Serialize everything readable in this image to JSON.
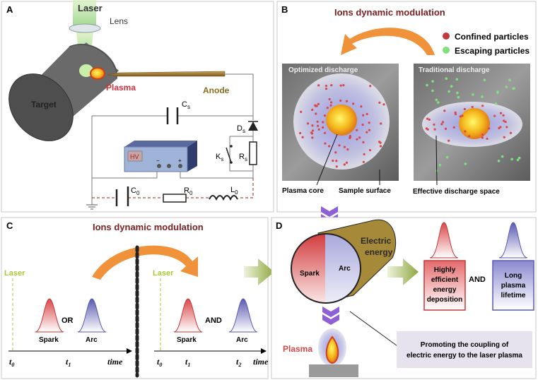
{
  "panels": {
    "A": {
      "letter": "A",
      "laser": "Laser",
      "lens": "Lens",
      "plasma": "Plasma",
      "anode": "Anode",
      "target": "Target",
      "hv": "HV",
      "minus": "−",
      "plus": "+",
      "components": {
        "cs": {
          "main": "C",
          "sub": "s"
        },
        "ds": {
          "main": "D",
          "sub": "s"
        },
        "ks": {
          "main": "K",
          "sub": "s"
        },
        "rs": {
          "main": "R",
          "sub": "s"
        },
        "c0": {
          "main": "C",
          "sub": "0"
        },
        "r0": {
          "main": "R",
          "sub": "0"
        },
        "l0": {
          "main": "L",
          "sub": "0"
        }
      }
    },
    "B": {
      "letter": "B",
      "title": "Ions dynamic modulation",
      "legend": [
        {
          "label": "Confined particles",
          "color": "#c0393b"
        },
        {
          "label": "Escaping particles",
          "color": "#7fe07f"
        }
      ],
      "left_image_title": "Optimized discharge",
      "right_image_title": "Traditional discharge",
      "labels": {
        "plasma_core": "Plasma core",
        "sample_surface": "Sample surface",
        "effective_space": "Effective discharge space"
      }
    },
    "C": {
      "letter": "C",
      "title": "Ions dynamic modulation",
      "left": {
        "laser": "Laser",
        "spark": "Spark",
        "or": "OR",
        "arc": "Arc",
        "t0": {
          "main": "t",
          "sub": "0"
        },
        "t1": {
          "main": "t",
          "sub": "1"
        },
        "time": "time"
      },
      "right": {
        "laser": "Laser",
        "spark": "Spark",
        "and": "AND",
        "arc": "Arc",
        "t0": {
          "main": "t",
          "sub": "0"
        },
        "t1": {
          "main": "t",
          "sub": "1"
        },
        "t2": {
          "main": "t",
          "sub": "2"
        },
        "time": "time"
      }
    },
    "D": {
      "letter": "D",
      "electric_energy": [
        "Electric",
        "energy"
      ],
      "spark": "Spark",
      "arc": "Arc",
      "box_red": [
        "Highly",
        "efficient",
        "energy",
        "deposition"
      ],
      "and": "AND",
      "box_blue": [
        "Long",
        "plasma",
        "lifetime"
      ],
      "plasma": "Plasma",
      "note": [
        "Promoting the coupling of",
        "electric energy to the laser plasma"
      ]
    }
  },
  "colors": {
    "title_red": "#7a1f1f",
    "orange_arrow": "#f0923a",
    "laser_green": "#8bc34a",
    "spark_red": "#d9474a",
    "arc_blue": "#5a5ab0",
    "anode_brown": "#8a6d1e",
    "chevron_purple": "#8f5fd6",
    "frame": "#c8c8c8"
  }
}
